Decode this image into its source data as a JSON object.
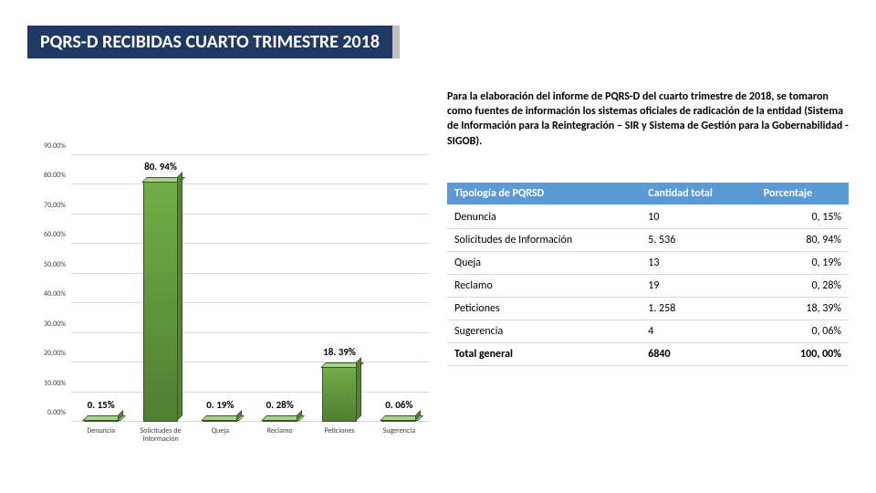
{
  "title": "PQRS-D RECIBIDAS CUARTO TRIMESTRE 2018",
  "description": "Para la elaboración del informe de PQRS-D del cuarto trimestre de 2018, se tomaron como fuentes de información los sistemas oficiales de radicación de la entidad (Sistema de Información para la Reintegración – SIR y Sistema de Gestión para la Gobernabilidad - SIGOB).",
  "chart": {
    "type": "bar",
    "ymax": 90,
    "ystep": 10,
    "ytick_suffix": ".00%",
    "bar_color_top": "#70ad47",
    "bar_color_bottom": "#507e32",
    "grid_color": "#d9d9d9",
    "axis_font_size": 8,
    "value_font_size": 11,
    "categories": [
      {
        "label": "Denuncia",
        "value": 0.15,
        "display": "0. 15%"
      },
      {
        "label": "Solicitudes de Información",
        "value": 80.94,
        "display": "80. 94%"
      },
      {
        "label": "Queja",
        "value": 0.19,
        "display": "0. 19%"
      },
      {
        "label": "Reclamo",
        "value": 0.28,
        "display": "0. 28%"
      },
      {
        "label": "Peticiones",
        "value": 18.39,
        "display": "18. 39%"
      },
      {
        "label": "Sugerencia",
        "value": 0.06,
        "display": "0. 06%"
      }
    ]
  },
  "table": {
    "headers": [
      "Tipología de PQRSD",
      "Cantidad total",
      "Porcentaje"
    ],
    "rows": [
      [
        "Denuncia",
        "10",
        "0, 15%"
      ],
      [
        "Solicitudes de Información",
        "5. 536",
        "80, 94%"
      ],
      [
        "Queja",
        "13",
        "0, 19%"
      ],
      [
        "Reclamo",
        "19",
        "0, 28%"
      ],
      [
        "Peticiones",
        "1. 258",
        "18, 39%"
      ],
      [
        "Sugerencia",
        "4",
        "0, 06%"
      ]
    ],
    "total": [
      "Total general",
      "6840",
      "100, 00%"
    ],
    "header_bg": "#5b9bd5",
    "header_fg": "#ffffff"
  }
}
